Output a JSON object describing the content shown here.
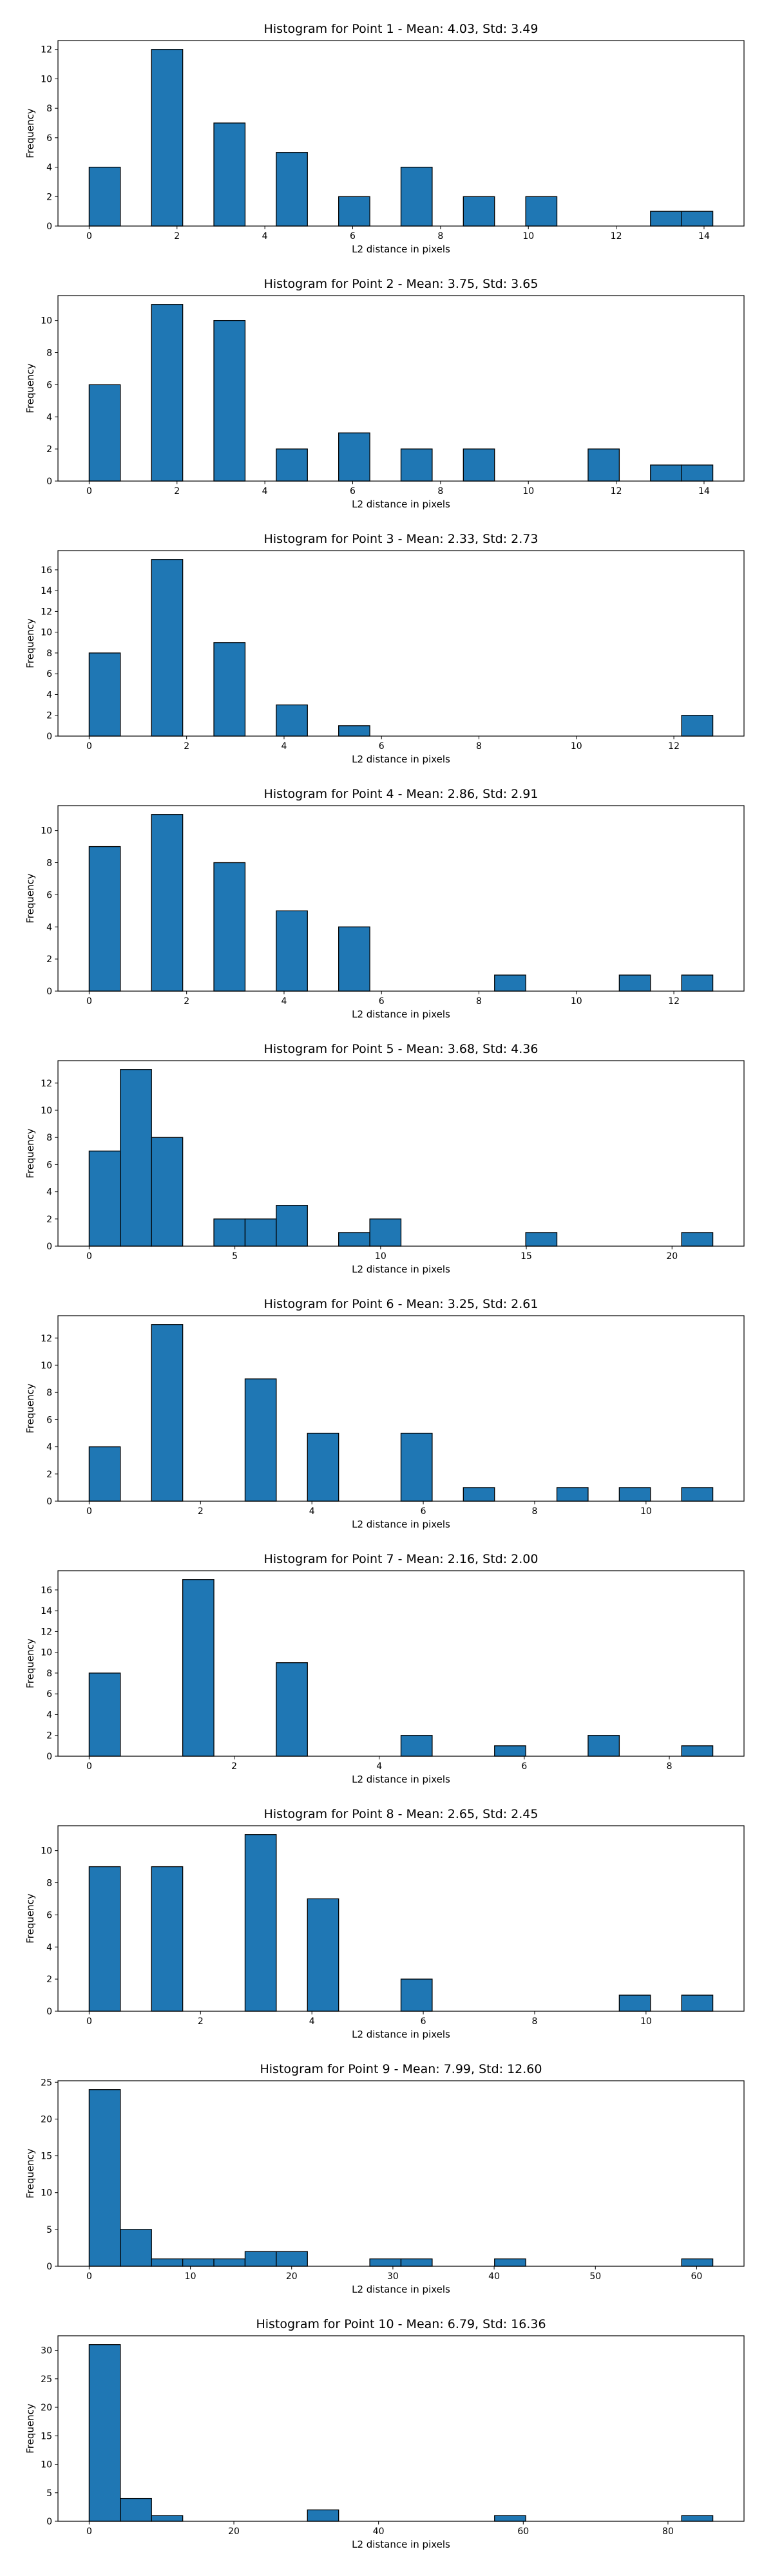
{
  "chart_data": [
    {
      "type": "bar",
      "title": "Histogram for Point 1 - Mean: 4.03, Std: 3.49",
      "xlabel": "L2 distance in pixels",
      "ylabel": "Frequency",
      "xlim": [
        -0.71,
        14.91
      ],
      "ylim": [
        0,
        12.6
      ],
      "xticks": [
        0,
        2,
        4,
        6,
        8,
        10,
        12,
        14
      ],
      "yticks": [
        0,
        2,
        4,
        6,
        8,
        10,
        12
      ],
      "bin_edges": [
        0,
        0.71,
        1.42,
        2.13,
        2.84,
        3.55,
        4.26,
        4.97,
        5.68,
        6.39,
        7.1,
        7.81,
        8.52,
        9.23,
        9.94,
        10.65,
        11.36,
        12.07,
        12.78,
        13.49,
        14.2
      ],
      "counts": [
        4,
        0,
        12,
        0,
        7,
        0,
        5,
        0,
        2,
        0,
        4,
        0,
        2,
        0,
        2,
        0,
        0,
        0,
        1,
        1
      ],
      "color": "#1f77b4"
    },
    {
      "type": "bar",
      "title": "Histogram for Point 2 - Mean: 3.75, Std: 3.65",
      "xlabel": "L2 distance in pixels",
      "ylabel": "Frequency",
      "xlim": [
        -0.71,
        14.91
      ],
      "ylim": [
        0,
        11.55
      ],
      "xticks": [
        0,
        2,
        4,
        6,
        8,
        10,
        12,
        14
      ],
      "yticks": [
        0,
        2,
        4,
        6,
        8,
        10
      ],
      "bin_edges": [
        0,
        0.71,
        1.42,
        2.13,
        2.84,
        3.55,
        4.26,
        4.97,
        5.68,
        6.39,
        7.1,
        7.81,
        8.52,
        9.23,
        9.94,
        10.65,
        11.36,
        12.07,
        12.78,
        13.49,
        14.2
      ],
      "counts": [
        6,
        0,
        11,
        0,
        10,
        0,
        2,
        0,
        3,
        0,
        2,
        0,
        2,
        0,
        0,
        0,
        2,
        0,
        1,
        1
      ],
      "color": "#1f77b4"
    },
    {
      "type": "bar",
      "title": "Histogram for Point 3 - Mean: 2.33, Std: 2.73",
      "xlabel": "L2 distance in pixels",
      "ylabel": "Frequency",
      "xlim": [
        -0.64,
        13.44
      ],
      "ylim": [
        0,
        17.85
      ],
      "xticks": [
        0,
        2,
        4,
        6,
        8,
        10,
        12
      ],
      "yticks": [
        0,
        2,
        4,
        6,
        8,
        10,
        12,
        14,
        16
      ],
      "bin_edges": [
        0,
        0.64,
        1.28,
        1.92,
        2.56,
        3.2,
        3.84,
        4.48,
        5.12,
        5.76,
        6.4,
        7.04,
        7.68,
        8.32,
        8.96,
        9.6,
        10.24,
        10.88,
        11.52,
        12.16,
        12.8
      ],
      "counts": [
        8,
        0,
        17,
        0,
        9,
        0,
        3,
        0,
        1,
        0,
        0,
        0,
        0,
        0,
        0,
        0,
        0,
        0,
        0,
        2
      ],
      "color": "#1f77b4"
    },
    {
      "type": "bar",
      "title": "Histogram for Point 4 - Mean: 2.86, Std: 2.91",
      "xlabel": "L2 distance in pixels",
      "ylabel": "Frequency",
      "xlim": [
        -0.64,
        13.44
      ],
      "ylim": [
        0,
        11.55
      ],
      "xticks": [
        0,
        2,
        4,
        6,
        8,
        10,
        12
      ],
      "yticks": [
        0,
        2,
        4,
        6,
        8,
        10
      ],
      "bin_edges": [
        0,
        0.64,
        1.28,
        1.92,
        2.56,
        3.2,
        3.84,
        4.48,
        5.12,
        5.76,
        6.4,
        7.04,
        7.68,
        8.32,
        8.96,
        9.6,
        10.24,
        10.88,
        11.52,
        12.16,
        12.8
      ],
      "counts": [
        9,
        0,
        11,
        0,
        8,
        0,
        5,
        0,
        4,
        0,
        0,
        0,
        0,
        1,
        0,
        0,
        0,
        1,
        0,
        1
      ],
      "color": "#1f77b4"
    },
    {
      "type": "bar",
      "title": "Histogram for Point 5 - Mean: 3.68, Std: 4.36",
      "xlabel": "L2 distance in pixels",
      "ylabel": "Frequency",
      "xlim": [
        -1.07,
        22.47
      ],
      "ylim": [
        0,
        13.65
      ],
      "xticks": [
        0,
        5,
        10,
        15,
        20
      ],
      "yticks": [
        0,
        2,
        4,
        6,
        8,
        10,
        12
      ],
      "bin_edges": [
        0,
        1.07,
        2.14,
        3.21,
        4.28,
        5.35,
        6.42,
        7.49,
        8.56,
        9.63,
        10.7,
        11.77,
        12.84,
        13.91,
        14.98,
        16.05,
        17.12,
        18.19,
        19.26,
        20.33,
        21.4
      ],
      "counts": [
        7,
        13,
        8,
        0,
        2,
        2,
        3,
        0,
        1,
        2,
        0,
        0,
        0,
        0,
        1,
        0,
        0,
        0,
        0,
        1
      ],
      "color": "#1f77b4"
    },
    {
      "type": "bar",
      "title": "Histogram for Point 6 - Mean: 3.25, Std: 2.61",
      "xlabel": "L2 distance in pixels",
      "ylabel": "Frequency",
      "xlim": [
        -0.56,
        11.76
      ],
      "ylim": [
        0,
        13.65
      ],
      "xticks": [
        0,
        2,
        4,
        6,
        8,
        10
      ],
      "yticks": [
        0,
        2,
        4,
        6,
        8,
        10,
        12
      ],
      "bin_edges": [
        0,
        0.56,
        1.12,
        1.68,
        2.24,
        2.8,
        3.36,
        3.92,
        4.48,
        5.04,
        5.6,
        6.16,
        6.72,
        7.28,
        7.84,
        8.4,
        8.96,
        9.52,
        10.08,
        10.64,
        11.2
      ],
      "counts": [
        4,
        0,
        13,
        0,
        0,
        9,
        0,
        5,
        0,
        0,
        5,
        0,
        1,
        0,
        0,
        1,
        0,
        1,
        0,
        1
      ],
      "color": "#1f77b4"
    },
    {
      "type": "bar",
      "title": "Histogram for Point 7 - Mean: 2.16, Std: 2.00",
      "xlabel": "L2 distance in pixels",
      "ylabel": "Frequency",
      "xlim": [
        -0.43,
        9.03
      ],
      "ylim": [
        0,
        17.85
      ],
      "xticks": [
        0,
        2,
        4,
        6,
        8
      ],
      "yticks": [
        0,
        2,
        4,
        6,
        8,
        10,
        12,
        14,
        16
      ],
      "bin_edges": [
        0,
        0.43,
        0.86,
        1.29,
        1.72,
        2.15,
        2.58,
        3.01,
        3.44,
        3.87,
        4.3,
        4.73,
        5.16,
        5.59,
        6.02,
        6.45,
        6.88,
        7.31,
        7.74,
        8.17,
        8.6
      ],
      "counts": [
        8,
        0,
        0,
        17,
        0,
        0,
        9,
        0,
        0,
        0,
        2,
        0,
        0,
        1,
        0,
        0,
        2,
        0,
        0,
        1
      ],
      "color": "#1f77b4"
    },
    {
      "type": "bar",
      "title": "Histogram for Point 8 - Mean: 2.65, Std: 2.45",
      "xlabel": "L2 distance in pixels",
      "ylabel": "Frequency",
      "xlim": [
        -0.56,
        11.76
      ],
      "ylim": [
        0,
        11.55
      ],
      "xticks": [
        0,
        2,
        4,
        6,
        8,
        10
      ],
      "yticks": [
        0,
        2,
        4,
        6,
        8,
        10
      ],
      "bin_edges": [
        0,
        0.56,
        1.12,
        1.68,
        2.24,
        2.8,
        3.36,
        3.92,
        4.48,
        5.04,
        5.6,
        6.16,
        6.72,
        7.28,
        7.84,
        8.4,
        8.96,
        9.52,
        10.08,
        10.64,
        11.2
      ],
      "counts": [
        9,
        0,
        9,
        0,
        0,
        11,
        0,
        7,
        0,
        0,
        2,
        0,
        0,
        0,
        0,
        0,
        0,
        1,
        0,
        1
      ],
      "color": "#1f77b4"
    },
    {
      "type": "bar",
      "title": "Histogram for Point 9 - Mean: 7.99, Std: 12.60",
      "xlabel": "L2 distance in pixels",
      "ylabel": "Frequency",
      "xlim": [
        -3.08,
        64.68
      ],
      "ylim": [
        0,
        25.2
      ],
      "xticks": [
        0,
        10,
        20,
        30,
        40,
        50,
        60
      ],
      "yticks": [
        0,
        5,
        10,
        15,
        20,
        25
      ],
      "bin_edges": [
        0,
        3.08,
        6.16,
        9.24,
        12.32,
        15.4,
        18.48,
        21.56,
        24.64,
        27.72,
        30.8,
        33.88,
        36.96,
        40.04,
        43.12,
        46.2,
        49.28,
        52.36,
        55.44,
        58.52,
        61.6
      ],
      "counts": [
        24,
        5,
        1,
        1,
        1,
        2,
        2,
        0,
        0,
        1,
        1,
        0,
        0,
        1,
        0,
        0,
        0,
        0,
        0,
        1
      ],
      "color": "#1f77b4"
    },
    {
      "type": "bar",
      "title": "Histogram for Point 10 - Mean: 6.79, Std: 16.36",
      "xlabel": "L2 distance in pixels",
      "ylabel": "Frequency",
      "xlim": [
        -4.31,
        90.51
      ],
      "ylim": [
        0,
        32.55
      ],
      "xticks": [
        0,
        20,
        40,
        60,
        80
      ],
      "yticks": [
        0,
        5,
        10,
        15,
        20,
        25,
        30
      ],
      "bin_edges": [
        0,
        4.31,
        8.62,
        12.93,
        17.24,
        21.55,
        25.86,
        30.17,
        34.48,
        38.79,
        43.1,
        47.41,
        51.72,
        56.03,
        60.34,
        64.65,
        68.96,
        73.27,
        77.58,
        81.89,
        86.2
      ],
      "counts": [
        31,
        4,
        1,
        0,
        0,
        0,
        0,
        2,
        0,
        0,
        0,
        0,
        0,
        1,
        0,
        0,
        0,
        0,
        0,
        1
      ],
      "color": "#1f77b4"
    }
  ]
}
